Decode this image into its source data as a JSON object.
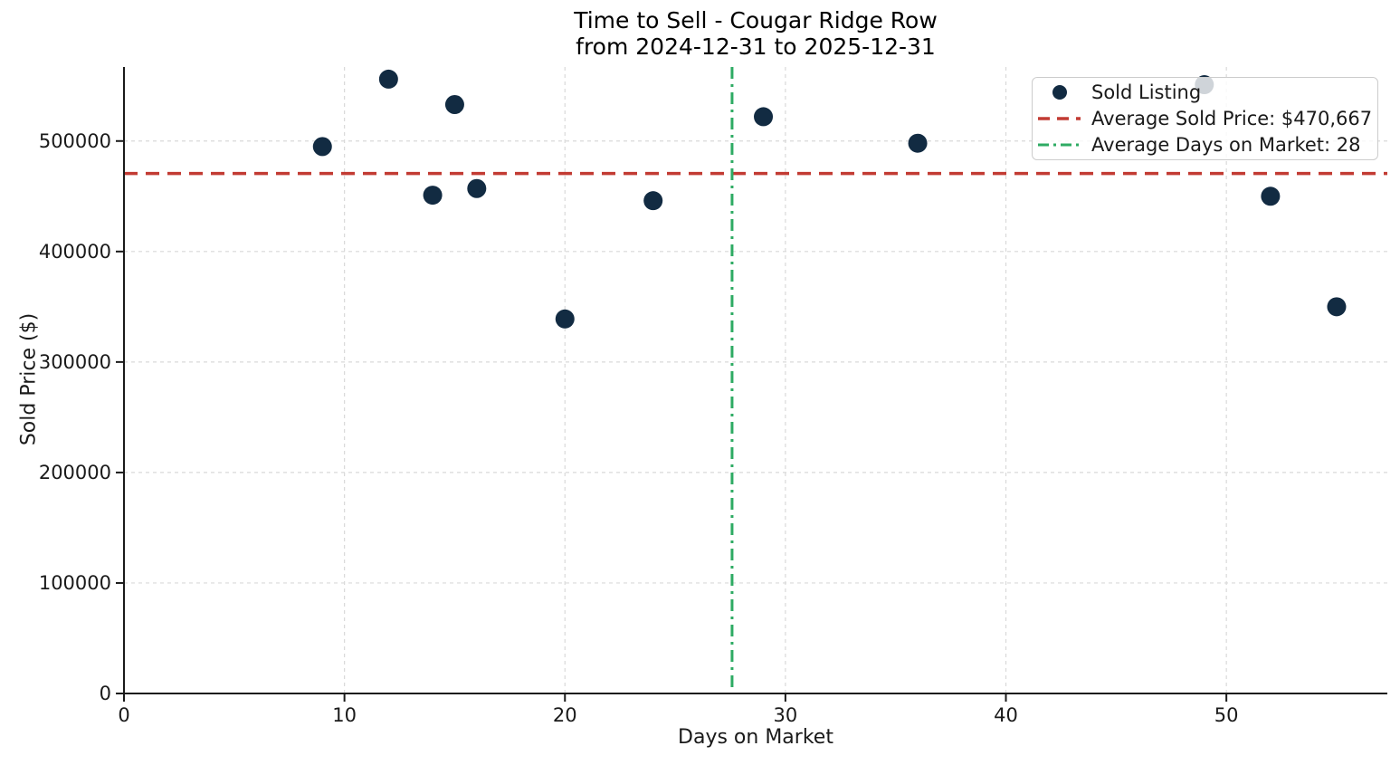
{
  "chart_data": {
    "type": "scatter",
    "title": "Time to Sell - Cougar Ridge Row",
    "subtitle": "from 2024-12-31 to 2025-12-31",
    "xlabel": "Days on Market",
    "ylabel": "Sold Price ($)",
    "xlim": [
      0,
      57.3
    ],
    "ylim": [
      0,
      567000
    ],
    "xticks": [
      0,
      10,
      20,
      30,
      40,
      50
    ],
    "yticks": [
      0,
      100000,
      200000,
      300000,
      400000,
      500000
    ],
    "grid": true,
    "legend_position": "upper right",
    "series": [
      {
        "name": "Sold Listing",
        "type": "scatter",
        "color": "#122b42",
        "points": [
          [
            9,
            495000
          ],
          [
            12,
            556000
          ],
          [
            14,
            451000
          ],
          [
            15,
            533000
          ],
          [
            16,
            457000
          ],
          [
            20,
            339000
          ],
          [
            24,
            446000
          ],
          [
            29,
            522000
          ],
          [
            36,
            498000
          ],
          [
            49,
            551000
          ],
          [
            52,
            450000
          ],
          [
            55,
            350000
          ]
        ]
      },
      {
        "name": "Average Sold Price: $470,667",
        "type": "hline",
        "value": 470667,
        "color": "#c23b33",
        "style": "dashed"
      },
      {
        "name": "Average Days on Market: 28",
        "type": "vline",
        "value": 27.58,
        "color": "#2eab63",
        "style": "dashdot"
      }
    ]
  },
  "legend": {
    "items": [
      {
        "label": "Sold Listing",
        "marker": "dot-marker"
      },
      {
        "label": "Average Sold Price: $470,667",
        "marker": "dashed-line-marker"
      },
      {
        "label": "Average Days on Market: 28",
        "marker": "dashdot-line-marker"
      }
    ]
  },
  "colors": {
    "scatter": "#122b42",
    "avg_price_line": "#c23b33",
    "avg_days_line": "#2eab63",
    "grid": "#d9d9d9",
    "spine": "#1a1a1a"
  }
}
